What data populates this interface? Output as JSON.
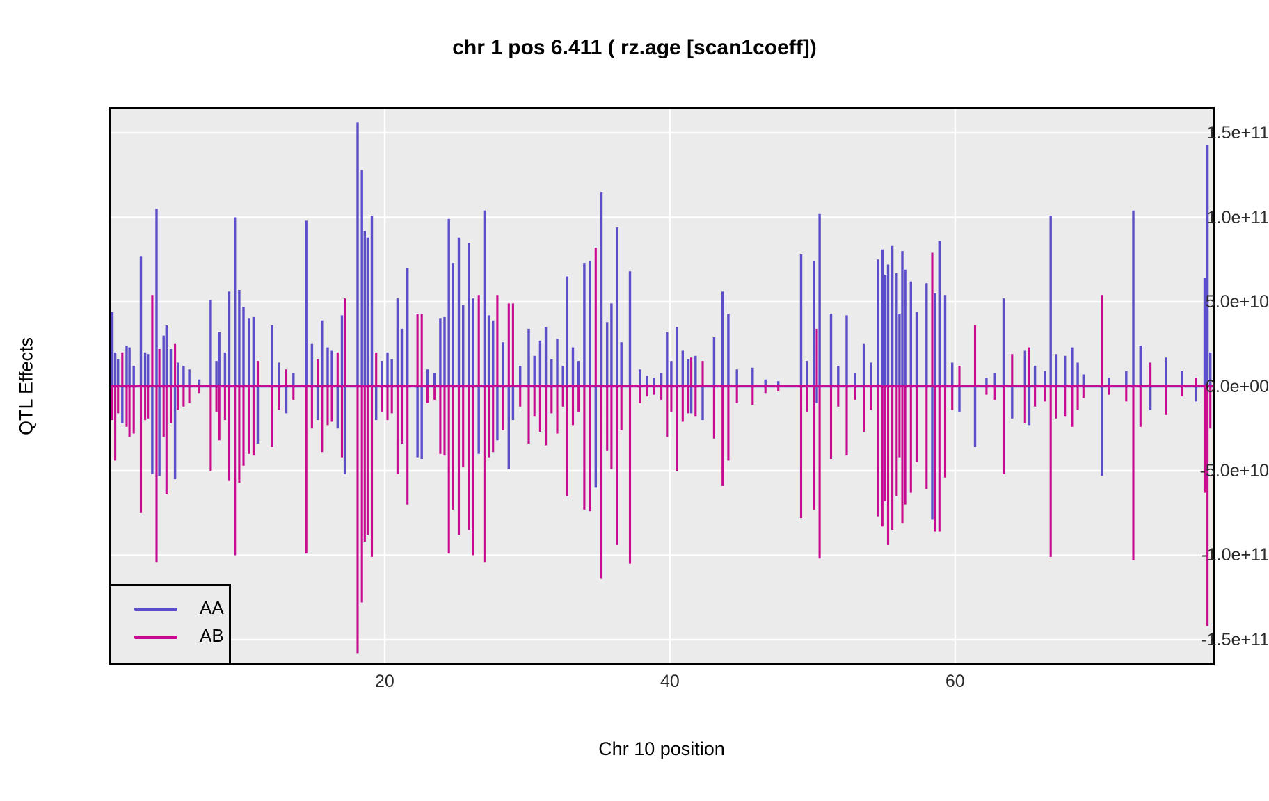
{
  "page": {
    "title": "chr 1 pos 6.411 ( rz.age  [scan1coeff])"
  },
  "chart_data": {
    "type": "line",
    "title": "chr 1 pos 6.411 ( rz.age  [scan1coeff])",
    "xlabel": "Chr 10 position",
    "ylabel": "QTL Effects",
    "grid": "major-white-on-gray",
    "legend_position": "bottom-left-inside",
    "colors": {
      "panel_background": "#EBEBEB",
      "grid_line": "#FFFFFF",
      "panel_border": "#000000",
      "aa_series": "#5B4EC8",
      "ab_series": "#C60B90",
      "axis_text": "#2b2b2b"
    },
    "xlim": [
      0.78,
      78.06
    ],
    "ylim": [
      -164000000000.0,
      164000000000.0
    ],
    "x_ticks": [
      {
        "label": "20",
        "value": 20
      },
      {
        "label": "40",
        "value": 40
      },
      {
        "label": "60",
        "value": 60
      }
    ],
    "y_ticks": [
      {
        "label": "1.5e+11",
        "value": 15
      },
      {
        "label": "1.0e+11",
        "value": 10
      },
      {
        "label": "5.0e+10",
        "value": 5
      },
      {
        "label": "0.0e+00",
        "value": 0
      },
      {
        "label": "-5.0e+10",
        "value": -5
      },
      {
        "label": "-1.0e+11",
        "value": -10
      },
      {
        "label": "-1.5e+11",
        "value": -15
      }
    ],
    "legend": [
      {
        "name": "AA",
        "color": "#5B4EC8"
      },
      {
        "name": "AB",
        "color": "#C60B90"
      }
    ],
    "value_unit_note": "spike values in units of 1e10; events are [position, AA_value, AB_value]; series are flat at 0 between events",
    "events": [
      [
        0.9,
        4.4,
        -2.0
      ],
      [
        1.1,
        2.0,
        -4.4
      ],
      [
        1.3,
        1.6,
        -1.6
      ],
      [
        1.6,
        -2.2,
        2.0
      ],
      [
        1.9,
        2.4,
        -2.4
      ],
      [
        2.1,
        2.3,
        -3.0
      ],
      [
        2.4,
        1.2,
        -2.8
      ],
      [
        2.9,
        7.7,
        -7.5
      ],
      [
        3.2,
        2.0,
        -2.0
      ],
      [
        3.4,
        1.9,
        -1.9
      ],
      [
        3.7,
        -5.2,
        5.4
      ],
      [
        4.0,
        10.5,
        -10.4
      ],
      [
        4.2,
        -5.3,
        2.2
      ],
      [
        4.5,
        3.0,
        -3.0
      ],
      [
        4.7,
        3.6,
        -6.4
      ],
      [
        5.0,
        2.2,
        -2.2
      ],
      [
        5.3,
        -5.5,
        2.5
      ],
      [
        5.5,
        1.4,
        -1.4
      ],
      [
        5.9,
        1.2,
        -1.2
      ],
      [
        6.3,
        1.0,
        -1.0
      ],
      [
        7.0,
        0.4,
        -0.4
      ],
      [
        7.8,
        5.1,
        -5.0
      ],
      [
        8.2,
        1.5,
        -1.5
      ],
      [
        8.4,
        3.2,
        -3.2
      ],
      [
        8.8,
        2.0,
        -2.0
      ],
      [
        9.1,
        5.6,
        -5.6
      ],
      [
        9.5,
        10.0,
        -10.0
      ],
      [
        9.8,
        5.7,
        -5.7
      ],
      [
        10.1,
        4.7,
        -4.7
      ],
      [
        10.5,
        4.0,
        -4.0
      ],
      [
        10.8,
        4.1,
        -4.1
      ],
      [
        11.1,
        -3.4,
        1.5
      ],
      [
        12.1,
        3.6,
        -3.6
      ],
      [
        12.6,
        1.4,
        -1.4
      ],
      [
        13.1,
        -1.6,
        1.0
      ],
      [
        13.6,
        0.8,
        -0.8
      ],
      [
        14.5,
        9.8,
        -9.9
      ],
      [
        14.9,
        2.5,
        -2.5
      ],
      [
        15.3,
        -2.0,
        1.6
      ],
      [
        15.6,
        3.9,
        -3.9
      ],
      [
        16.0,
        2.3,
        -2.3
      ],
      [
        16.3,
        2.1,
        -2.1
      ],
      [
        16.7,
        -2.5,
        2.0
      ],
      [
        17.0,
        4.2,
        -4.2
      ],
      [
        17.2,
        -5.2,
        5.2
      ],
      [
        18.1,
        15.6,
        -15.8
      ],
      [
        18.4,
        12.8,
        -12.8
      ],
      [
        18.6,
        9.2,
        -9.2
      ],
      [
        18.8,
        8.8,
        -8.8
      ],
      [
        19.1,
        10.1,
        -10.1
      ],
      [
        19.4,
        -2.0,
        2.0
      ],
      [
        19.8,
        1.5,
        -1.5
      ],
      [
        20.2,
        2.0,
        -2.0
      ],
      [
        20.5,
        1.6,
        -1.6
      ],
      [
        20.9,
        5.2,
        -5.2
      ],
      [
        21.2,
        3.4,
        -3.4
      ],
      [
        21.6,
        7.0,
        -7.0
      ],
      [
        22.3,
        -4.2,
        4.3
      ],
      [
        22.6,
        -4.3,
        4.3
      ],
      [
        23.0,
        1.0,
        -1.0
      ],
      [
        23.5,
        0.8,
        -0.8
      ],
      [
        23.9,
        4.0,
        -4.0
      ],
      [
        24.2,
        4.1,
        -4.1
      ],
      [
        24.5,
        9.9,
        -9.9
      ],
      [
        24.8,
        7.3,
        -7.3
      ],
      [
        25.2,
        8.8,
        -8.8
      ],
      [
        25.5,
        4.8,
        -4.8
      ],
      [
        25.9,
        8.5,
        -8.5
      ],
      [
        26.2,
        5.2,
        -10.0
      ],
      [
        26.6,
        -4.0,
        5.4
      ],
      [
        27.0,
        10.4,
        -10.4
      ],
      [
        27.3,
        4.2,
        -4.2
      ],
      [
        27.6,
        3.9,
        -3.9
      ],
      [
        27.9,
        -3.2,
        5.4
      ],
      [
        28.3,
        2.6,
        -2.6
      ],
      [
        28.7,
        -4.9,
        4.9
      ],
      [
        29.0,
        -2.0,
        4.9
      ],
      [
        29.5,
        1.2,
        -1.2
      ],
      [
        30.1,
        3.4,
        -3.4
      ],
      [
        30.5,
        1.8,
        -1.8
      ],
      [
        30.9,
        2.7,
        -2.7
      ],
      [
        31.3,
        3.5,
        -3.5
      ],
      [
        31.7,
        1.6,
        -1.6
      ],
      [
        32.1,
        2.8,
        -2.8
      ],
      [
        32.5,
        1.2,
        -1.2
      ],
      [
        32.8,
        6.5,
        -6.5
      ],
      [
        33.2,
        2.3,
        -2.3
      ],
      [
        33.6,
        1.5,
        -1.5
      ],
      [
        34.0,
        7.3,
        -7.3
      ],
      [
        34.4,
        7.4,
        -7.4
      ],
      [
        34.8,
        -6.0,
        8.2
      ],
      [
        35.2,
        11.5,
        -11.4
      ],
      [
        35.6,
        3.8,
        -3.8
      ],
      [
        35.9,
        4.9,
        -4.9
      ],
      [
        36.3,
        9.4,
        -9.4
      ],
      [
        36.6,
        2.6,
        -2.6
      ],
      [
        37.2,
        6.8,
        -10.5
      ],
      [
        37.9,
        1.0,
        -1.0
      ],
      [
        38.4,
        0.6,
        -0.6
      ],
      [
        38.9,
        0.5,
        -0.5
      ],
      [
        39.4,
        0.8,
        -0.8
      ],
      [
        39.8,
        3.2,
        -3.0
      ],
      [
        40.1,
        1.5,
        -1.5
      ],
      [
        40.5,
        3.5,
        -5.0
      ],
      [
        40.9,
        2.1,
        -2.1
      ],
      [
        41.3,
        1.6,
        -1.6
      ],
      [
        41.5,
        -1.6,
        1.7
      ],
      [
        41.8,
        1.8,
        -1.8
      ],
      [
        42.3,
        -2.0,
        1.5
      ],
      [
        43.1,
        2.9,
        -3.1
      ],
      [
        43.7,
        5.6,
        -5.9
      ],
      [
        44.1,
        4.3,
        -4.4
      ],
      [
        44.7,
        1.0,
        -1.0
      ],
      [
        45.8,
        1.1,
        -1.1
      ],
      [
        46.7,
        0.4,
        -0.4
      ],
      [
        47.6,
        0.3,
        -0.3
      ],
      [
        49.2,
        7.8,
        -7.8
      ],
      [
        49.6,
        1.5,
        -1.5
      ],
      [
        50.1,
        7.4,
        -7.3
      ],
      [
        50.3,
        -1.0,
        3.4
      ],
      [
        50.5,
        10.2,
        -10.2
      ],
      [
        51.3,
        4.3,
        -4.3
      ],
      [
        51.8,
        1.2,
        -1.2
      ],
      [
        52.4,
        4.2,
        -4.1
      ],
      [
        53.0,
        0.8,
        -0.8
      ],
      [
        53.6,
        2.5,
        -2.7
      ],
      [
        54.1,
        1.4,
        -1.4
      ],
      [
        54.6,
        7.5,
        -7.7
      ],
      [
        54.9,
        8.1,
        -8.3
      ],
      [
        55.1,
        6.6,
        -6.8
      ],
      [
        55.3,
        7.2,
        -9.4
      ],
      [
        55.6,
        8.3,
        -8.5
      ],
      [
        55.9,
        6.7,
        -6.5
      ],
      [
        56.1,
        4.3,
        -4.2
      ],
      [
        56.3,
        8.0,
        -8.1
      ],
      [
        56.5,
        6.9,
        -7.0
      ],
      [
        56.9,
        6.2,
        -6.3
      ],
      [
        57.3,
        4.4,
        -4.5
      ],
      [
        58.0,
        6.1,
        -6.1
      ],
      [
        58.4,
        -7.9,
        7.9
      ],
      [
        58.6,
        5.5,
        -8.6
      ],
      [
        58.9,
        8.6,
        -8.6
      ],
      [
        59.3,
        5.4,
        -5.4
      ],
      [
        59.8,
        1.4,
        -1.4
      ],
      [
        60.3,
        -1.5,
        1.2
      ],
      [
        61.4,
        -3.6,
        3.6
      ],
      [
        62.2,
        0.5,
        -0.5
      ],
      [
        62.8,
        0.8,
        -0.8
      ],
      [
        63.4,
        5.2,
        -5.2
      ],
      [
        64.0,
        -1.9,
        1.9
      ],
      [
        64.9,
        2.1,
        -2.2
      ],
      [
        65.2,
        -2.3,
        2.3
      ],
      [
        65.6,
        1.2,
        -1.2
      ],
      [
        66.3,
        0.9,
        -0.9
      ],
      [
        66.7,
        10.1,
        -10.1
      ],
      [
        67.1,
        1.9,
        -1.9
      ],
      [
        67.7,
        1.8,
        -1.8
      ],
      [
        68.2,
        2.3,
        -2.4
      ],
      [
        68.6,
        1.4,
        -1.4
      ],
      [
        69.0,
        0.7,
        -0.7
      ],
      [
        70.3,
        -5.3,
        5.4
      ],
      [
        70.8,
        0.5,
        -0.5
      ],
      [
        72.0,
        0.9,
        -0.9
      ],
      [
        72.5,
        10.4,
        -10.3
      ],
      [
        73.0,
        2.4,
        -2.4
      ],
      [
        73.7,
        -1.4,
        1.4
      ],
      [
        74.8,
        1.7,
        -1.7
      ],
      [
        75.9,
        0.9,
        -0.6
      ],
      [
        76.9,
        -0.9,
        0.5
      ],
      [
        77.5,
        6.4,
        -6.3
      ],
      [
        77.7,
        14.3,
        -14.2
      ],
      [
        77.9,
        2.0,
        -2.5
      ]
    ]
  }
}
